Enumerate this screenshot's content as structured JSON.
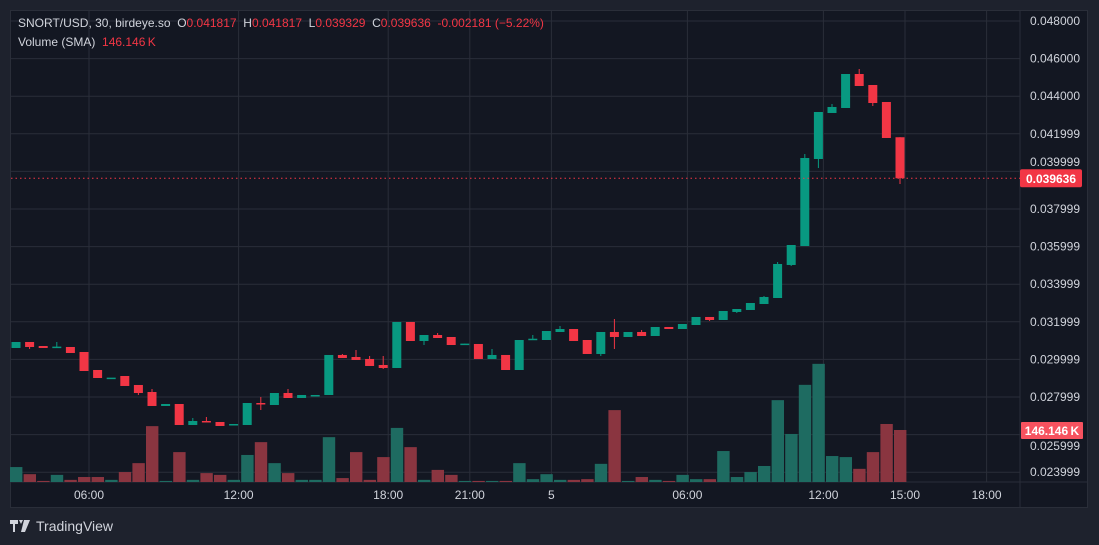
{
  "header": {
    "symbol": "SNORT/USD, 30, birdeye.so",
    "o_label": "O",
    "o": "0.041817",
    "h_label": "H",
    "h": "0.041817",
    "l_label": "L",
    "l": "0.039329",
    "c_label": "C",
    "c": "0.039636",
    "change": "-0.002181 (−5.22%)",
    "volume_label": "Volume (SMA)",
    "volume_value": "146.146 K"
  },
  "branding": {
    "logo_text": "TradingView"
  },
  "colors": {
    "up": "#089981",
    "down": "#f23645",
    "vol_up": "#1e6b61",
    "vol_down": "#8a3540",
    "grid": "#2a2e39",
    "text": "#d1d4dc"
  },
  "chart_data": {
    "type": "candlestick",
    "title": "SNORT/USD, 30, birdeye.so",
    "interval_minutes": 30,
    "y_ticks": [
      "0.048000",
      "0.046000",
      "0.044000",
      "0.041999",
      "0.039999",
      "0.037999",
      "0.035999",
      "0.033999",
      "0.031999",
      "0.029999",
      "0.027999",
      "0.025999",
      "0.023999"
    ],
    "y_tick_values": [
      0.048,
      0.046,
      0.044,
      0.042,
      0.04,
      0.038,
      0.036,
      0.034,
      0.032,
      0.03,
      0.028,
      0.026,
      0.024
    ],
    "ylim": [
      0.0228,
      0.0486
    ],
    "x_ticks": [
      {
        "label": "06:00",
        "candle": 5
      },
      {
        "label": "12:00",
        "candle": 16
      },
      {
        "label": "18:00",
        "candle": 27
      },
      {
        "label": "21:00",
        "candle": 33
      },
      {
        "label": "5",
        "candle": 39
      },
      {
        "label": "06:00",
        "candle": 49
      },
      {
        "label": "12:00",
        "candle": 59
      },
      {
        "label": "15:00",
        "candle": 65
      },
      {
        "label": "18:00",
        "candle": 71
      }
    ],
    "last_price": 0.039636,
    "last_price_label": "0.039636",
    "last_volume_label": "146.146 K",
    "volume_unit": "K",
    "candles_ohlc": [
      [
        0.030607,
        0.030926,
        0.030607,
        0.030926
      ],
      [
        0.030926,
        0.030926,
        0.030554,
        0.03066
      ],
      [
        0.030713,
        0.030713,
        0.030607,
        0.030607
      ],
      [
        0.03066,
        0.030926,
        0.03066,
        0.03068
      ],
      [
        0.03066,
        0.03066,
        0.030341,
        0.030341
      ],
      [
        0.030394,
        0.030394,
        0.029383,
        0.029383
      ],
      [
        0.029436,
        0.029436,
        0.029011,
        0.029011
      ],
      [
        0.029011,
        0.029011,
        0.029011,
        0.02903
      ],
      [
        0.029117,
        0.029117,
        0.028586,
        0.028586
      ],
      [
        0.028639,
        0.028639,
        0.028107,
        0.028213
      ],
      [
        0.028266,
        0.028426,
        0.027522,
        0.027522
      ],
      [
        0.027522,
        0.027628,
        0.027522,
        0.027628
      ],
      [
        0.027628,
        0.027628,
        0.026511,
        0.026511
      ],
      [
        0.026511,
        0.026883,
        0.026511,
        0.026724
      ],
      [
        0.026724,
        0.026937,
        0.02667,
        0.02667
      ],
      [
        0.02667,
        0.02667,
        0.026458,
        0.026458
      ],
      [
        0.026511,
        0.026564,
        0.026511,
        0.026564
      ],
      [
        0.026511,
        0.027681,
        0.026511,
        0.027681
      ],
      [
        0.027681,
        0.027999,
        0.027308,
        0.027628
      ],
      [
        0.027575,
        0.028213,
        0.027575,
        0.028213
      ],
      [
        0.028213,
        0.028426,
        0.027947,
        0.027947
      ],
      [
        0.027947,
        0.028107,
        0.027947,
        0.028107
      ],
      [
        0.028053,
        0.028107,
        0.028053,
        0.028107
      ],
      [
        0.028107,
        0.030235,
        0.028107,
        0.030235
      ],
      [
        0.030235,
        0.030288,
        0.030075,
        0.030075
      ],
      [
        0.030128,
        0.0305,
        0.029969,
        0.029969
      ],
      [
        0.030022,
        0.030181,
        0.02965,
        0.02965
      ],
      [
        0.029703,
        0.030181,
        0.02949,
        0.029543
      ],
      [
        0.029543,
        0.03199,
        0.029543,
        0.03199
      ],
      [
        0.03199,
        0.03199,
        0.030979,
        0.030979
      ],
      [
        0.030979,
        0.031298,
        0.030766,
        0.031298
      ],
      [
        0.031298,
        0.031404,
        0.031138,
        0.031138
      ],
      [
        0.031192,
        0.031192,
        0.030766,
        0.030766
      ],
      [
        0.03082,
        0.03084,
        0.03082,
        0.03084
      ],
      [
        0.03082,
        0.03082,
        0.030022,
        0.030022
      ],
      [
        0.030022,
        0.030554,
        0.030022,
        0.030235
      ],
      [
        0.030235,
        0.030235,
        0.029436,
        0.029436
      ],
      [
        0.029436,
        0.031032,
        0.029436,
        0.031032
      ],
      [
        0.031085,
        0.031298,
        0.031085,
        0.0311
      ],
      [
        0.031032,
        0.031511,
        0.031032,
        0.031511
      ],
      [
        0.031458,
        0.031777,
        0.031458,
        0.031617
      ],
      [
        0.031617,
        0.031617,
        0.030979,
        0.030979
      ],
      [
        0.031032,
        0.031032,
        0.030288,
        0.030288
      ],
      [
        0.030288,
        0.031458,
        0.030181,
        0.031458
      ],
      [
        0.031458,
        0.032149,
        0.030554,
        0.031192
      ],
      [
        0.031192,
        0.031458,
        0.031192,
        0.031458
      ],
      [
        0.031458,
        0.031564,
        0.031245,
        0.031245
      ],
      [
        0.031245,
        0.031724,
        0.031245,
        0.031724
      ],
      [
        0.031724,
        0.031724,
        0.031617,
        0.031617
      ],
      [
        0.031617,
        0.031883,
        0.031617,
        0.031883
      ],
      [
        0.03183,
        0.032256,
        0.03183,
        0.032256
      ],
      [
        0.032256,
        0.032256,
        0.032043,
        0.032096
      ],
      [
        0.032096,
        0.032575,
        0.032096,
        0.032575
      ],
      [
        0.032522,
        0.032681,
        0.032469,
        0.032681
      ],
      [
        0.032628,
        0.033,
        0.032628,
        0.033
      ],
      [
        0.032947,
        0.033373,
        0.032947,
        0.03332
      ],
      [
        0.033266,
        0.035181,
        0.033266,
        0.035075
      ],
      [
        0.035022,
        0.036085,
        0.034969,
        0.036085
      ],
      [
        0.036032,
        0.040926,
        0.036032,
        0.040713
      ],
      [
        0.04066,
        0.04316,
        0.040181,
        0.04316
      ],
      [
        0.043107,
        0.043585,
        0.043107,
        0.043426
      ],
      [
        0.043373,
        0.045181,
        0.043373,
        0.045181
      ],
      [
        0.045181,
        0.045447,
        0.044543,
        0.044543
      ],
      [
        0.044596,
        0.044596,
        0.043479,
        0.043638
      ],
      [
        0.043692,
        0.043692,
        0.041777,
        0.041777
      ],
      [
        0.041817,
        0.041817,
        0.039329,
        0.039636
      ]
    ],
    "volumes_k": [
      42,
      22,
      3,
      20,
      6,
      14,
      14,
      6,
      28,
      53,
      157,
      3,
      84,
      6,
      25,
      20,
      6,
      76,
      112,
      53,
      25,
      6,
      6,
      126,
      11,
      84,
      6,
      70,
      152,
      98,
      6,
      34,
      20,
      3,
      3,
      3,
      3,
      53,
      8,
      22,
      6,
      6,
      8,
      51,
      202,
      3,
      14,
      6,
      3,
      20,
      8,
      8,
      87,
      14,
      28,
      45,
      230,
      135,
      273,
      332,
      73,
      70,
      37,
      84,
      163,
      146.146
    ],
    "grid": true
  }
}
